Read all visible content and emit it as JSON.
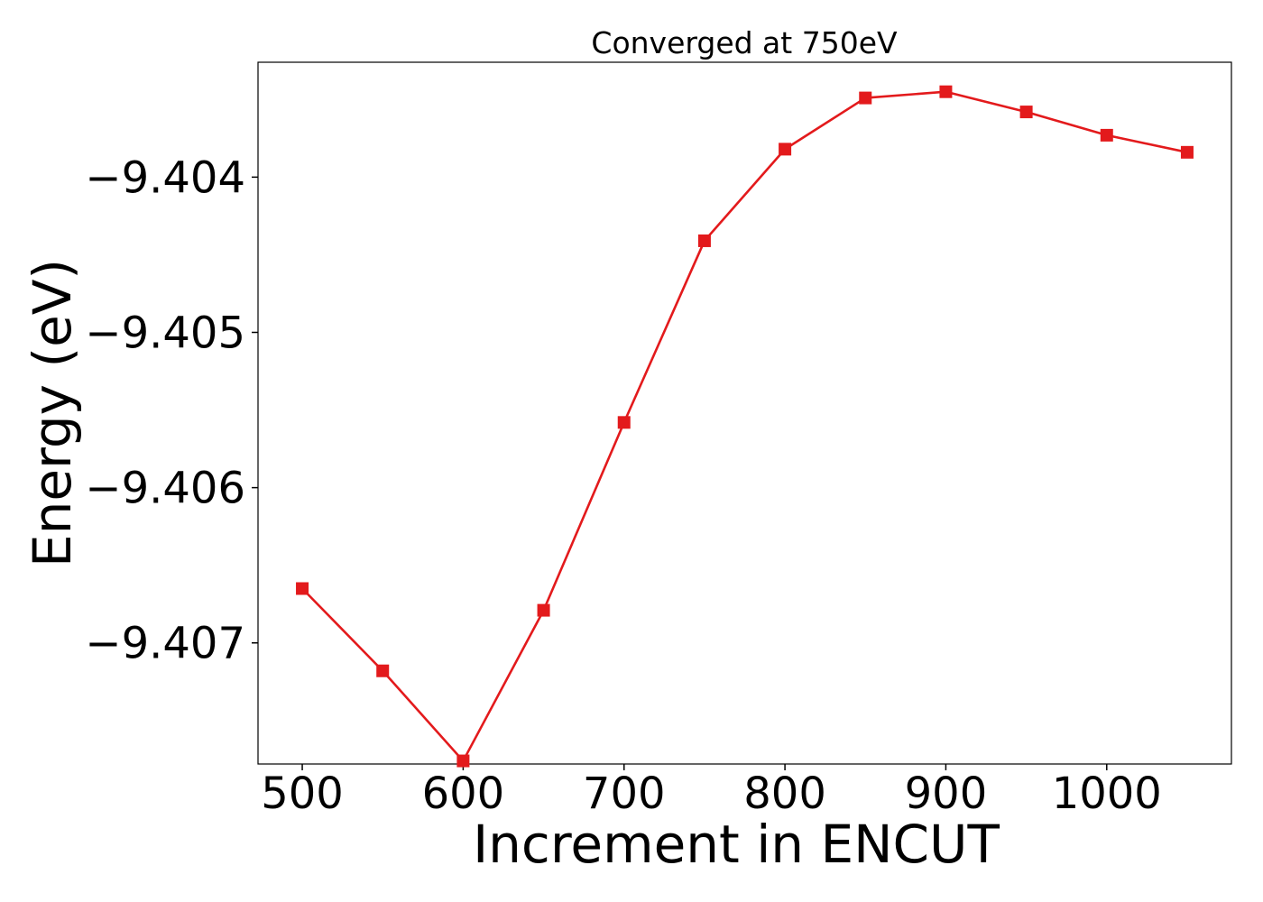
{
  "chart_data": {
    "type": "line",
    "title": "Converged at 750eV",
    "xlabel": "Increment in ENCUT",
    "ylabel": "Energy (eV)",
    "xlim": [
      472.5,
      1077.5
    ],
    "ylim": [
      -9.40778,
      -9.40326
    ],
    "x_ticks": [
      500,
      600,
      700,
      800,
      900,
      1000
    ],
    "x_tick_labels": [
      "500",
      "600",
      "700",
      "800",
      "900",
      "1000"
    ],
    "y_ticks": [
      -9.404,
      -9.405,
      -9.406,
      -9.407
    ],
    "y_tick_labels": [
      "−9.404",
      "−9.405",
      "−9.406",
      "−9.407"
    ],
    "grid": false,
    "series": [
      {
        "color": "#e31a1c",
        "marker": "square",
        "x": [
          500,
          550,
          600,
          650,
          700,
          750,
          800,
          850,
          900,
          950,
          1000,
          1050
        ],
        "y": [
          -9.40665,
          -9.40718,
          -9.40776,
          -9.40679,
          -9.40558,
          -9.40441,
          -9.40382,
          -9.40349,
          -9.40345,
          -9.40358,
          -9.40373,
          -9.40384
        ]
      }
    ]
  }
}
